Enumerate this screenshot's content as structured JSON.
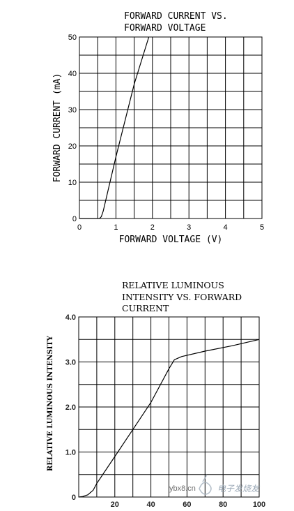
{
  "chart_data": [
    {
      "type": "line",
      "title_lines": [
        "FORWARD CURRENT VS.",
        "FORWARD VOLTAGE"
      ],
      "xlabel": "FORWARD VOLTAGE (V)",
      "ylabel": "FORWARD CURRENT (mA)",
      "xlim": [
        0,
        5
      ],
      "ylim": [
        0,
        50
      ],
      "x_ticks": [
        "0",
        "1",
        "2",
        "3",
        "4",
        "5"
      ],
      "y_ticks": [
        "0",
        "10",
        "20",
        "30",
        "40",
        "50"
      ],
      "grid": true,
      "series": [
        {
          "x": [
            0.55,
            0.6,
            0.65,
            1.0,
            1.5,
            1.9
          ],
          "y": [
            0,
            0.5,
            2,
            17,
            37,
            50
          ]
        }
      ]
    },
    {
      "type": "line",
      "title_lines": [
        "RELATIVE LUMINOUS",
        "INTENSITY VS. FORWARD",
        "CURRENT"
      ],
      "xlabel": "",
      "ylabel": "RELATIVE LUMINOUS INTENSITY",
      "xlim": [
        0,
        100
      ],
      "ylim": [
        0,
        4.0
      ],
      "x_ticks": [
        "20",
        "40",
        "60",
        "80",
        "100"
      ],
      "y_ticks": [
        "0",
        "1.0",
        "2.0",
        "3.0",
        "4.0"
      ],
      "grid": true,
      "series": [
        {
          "x": [
            0,
            2,
            5,
            8,
            10,
            20,
            30,
            40,
            50,
            53,
            57,
            70,
            85,
            100
          ],
          "y": [
            0,
            0.01,
            0.05,
            0.15,
            0.3,
            0.9,
            1.5,
            2.1,
            2.85,
            3.05,
            3.12,
            3.24,
            3.36,
            3.5
          ]
        }
      ]
    }
  ],
  "watermark": {
    "site": "ybx8.cn",
    "brand": "电子发烧友"
  }
}
